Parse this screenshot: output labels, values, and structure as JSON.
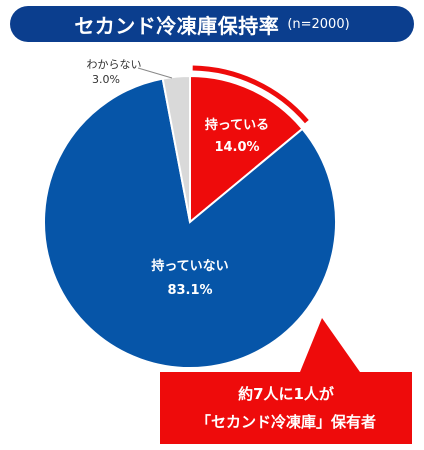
{
  "header": {
    "title": "セカンド冷凍庫保持率",
    "sample": "(n=2000)"
  },
  "colors": {
    "title_bg": "#0b3e8e",
    "own": "#ee0b0b",
    "not_own": "#0655a8",
    "unknown": "#d9d9d9",
    "callout": "#ee0b0b"
  },
  "chart_data": {
    "type": "pie",
    "title": "セカンド冷凍庫保持率",
    "slices": [
      {
        "label": "持っている",
        "value": 14.0,
        "display": "14.0%",
        "color": "#ee0b0b"
      },
      {
        "label": "持っていない",
        "value": 83.1,
        "display": "83.1%",
        "color": "#0655a8"
      },
      {
        "label": "わからない",
        "value": 3.0,
        "display": "3.0%",
        "color": "#d9d9d9"
      }
    ]
  },
  "callout": {
    "line1": "約7人に1人が",
    "line2": "「セカンド冷凍庫」保有者"
  }
}
